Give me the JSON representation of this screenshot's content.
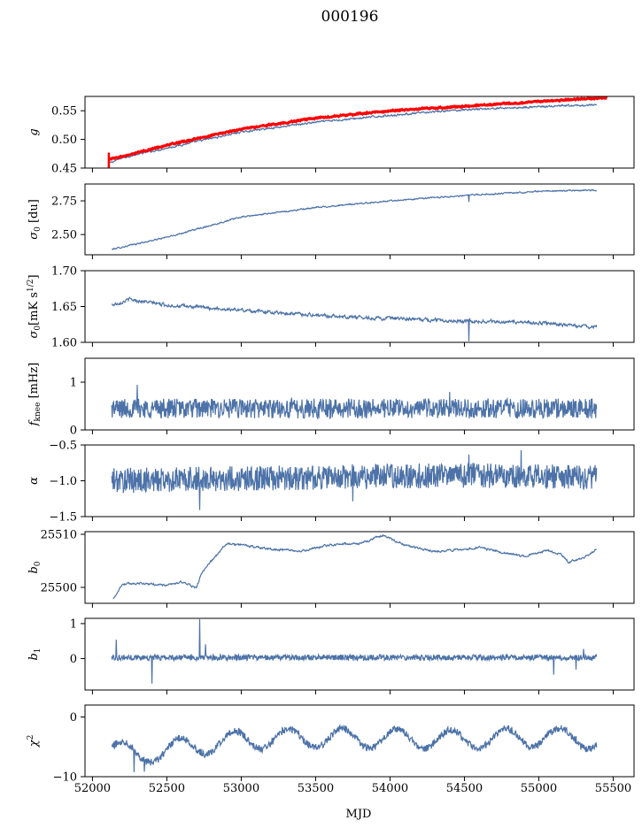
{
  "figure": {
    "title": "000196",
    "xlabel": "MJD",
    "x_ticks": [
      52000,
      52500,
      53000,
      53500,
      54000,
      54500,
      55000,
      55500
    ],
    "x_tick_labels": [
      "52000",
      "52500",
      "53000",
      "53500",
      "54000",
      "54500",
      "55000",
      "55500"
    ]
  },
  "colors": {
    "series": "#4c72a8",
    "fit": "#ff0000",
    "axes": "#000000"
  },
  "chart_data": [
    {
      "type": "line",
      "ylabel": "g",
      "xlim": [
        51950,
        55640
      ],
      "ylim": [
        0.45,
        0.575
      ],
      "y_ticks": [
        0.45,
        0.5,
        0.55
      ],
      "y_tick_labels": [
        "0.45",
        "0.50",
        "0.55"
      ],
      "series": [
        {
          "role": "line",
          "kind": "trend",
          "x_start": 52110,
          "x_end": 55390,
          "noise": 0.0012,
          "knots": [
            [
              52110,
              0.458
            ],
            [
              52200,
              0.468
            ],
            [
              52500,
              0.485
            ],
            [
              53000,
              0.513
            ],
            [
              53500,
              0.53
            ],
            [
              54000,
              0.542
            ],
            [
              54500,
              0.552
            ],
            [
              55000,
              0.557
            ],
            [
              55390,
              0.56
            ]
          ]
        },
        {
          "role": "fit",
          "kind": "trend",
          "x_start": 52110,
          "x_end": 55460,
          "noise": 0.0009,
          "knots": [
            [
              52110,
              0.466
            ],
            [
              52200,
              0.47
            ],
            [
              52500,
              0.49
            ],
            [
              53000,
              0.518
            ],
            [
              53500,
              0.537
            ],
            [
              54000,
              0.55
            ],
            [
              54500,
              0.558
            ],
            [
              55000,
              0.566
            ],
            [
              55460,
              0.573
            ]
          ]
        }
      ]
    },
    {
      "type": "line",
      "ylabel": "σ0 [du]",
      "xlim": [
        51950,
        55640
      ],
      "ylim": [
        2.35,
        2.875
      ],
      "y_ticks": [
        2.5,
        2.75
      ],
      "y_tick_labels": [
        "2.50",
        "2.75"
      ],
      "series": [
        {
          "role": "line",
          "kind": "trend",
          "x_start": 52130,
          "x_end": 55390,
          "noise": 0.004,
          "knots": [
            [
              52130,
              2.39
            ],
            [
              52500,
              2.48
            ],
            [
              53000,
              2.63
            ],
            [
              53500,
              2.7
            ],
            [
              54000,
              2.75
            ],
            [
              54500,
              2.79
            ],
            [
              55000,
              2.82
            ],
            [
              55390,
              2.83
            ]
          ],
          "spikes": [
            [
              54530,
              -0.05
            ]
          ]
        }
      ]
    },
    {
      "type": "line",
      "ylabel": "σ0[mK s^1/2]",
      "xlim": [
        51950,
        55640
      ],
      "ylim": [
        1.6,
        1.7
      ],
      "y_ticks": [
        1.6,
        1.65,
        1.7
      ],
      "y_tick_labels": [
        "1.60",
        "1.65",
        "1.70"
      ],
      "series": [
        {
          "role": "line",
          "kind": "trend",
          "x_start": 52130,
          "x_end": 55390,
          "noise": 0.0018,
          "knots": [
            [
              52130,
              1.652
            ],
            [
              52250,
              1.66
            ],
            [
              52500,
              1.652
            ],
            [
              53000,
              1.645
            ],
            [
              53500,
              1.638
            ],
            [
              54000,
              1.633
            ],
            [
              54500,
              1.63
            ],
            [
              55000,
              1.627
            ],
            [
              55390,
              1.621
            ]
          ],
          "spikes": [
            [
              54530,
              -0.03
            ]
          ]
        }
      ]
    },
    {
      "type": "line",
      "ylabel": "f_knee [mHz]",
      "xlim": [
        51950,
        55640
      ],
      "ylim": [
        0,
        1.5
      ],
      "y_ticks": [
        0,
        1
      ],
      "y_tick_labels": [
        "0",
        "1"
      ],
      "series": [
        {
          "role": "line",
          "kind": "noise",
          "x_start": 52130,
          "x_end": 55390,
          "noise": 0.13,
          "knots": [
            [
              52130,
              0.45
            ],
            [
              55390,
              0.45
            ]
          ],
          "spikes": [
            [
              52300,
              0.42
            ],
            [
              54400,
              0.3
            ],
            [
              55280,
              0.3
            ]
          ]
        }
      ]
    },
    {
      "type": "line",
      "ylabel": "α",
      "xlim": [
        51950,
        55640
      ],
      "ylim": [
        -1.5,
        -0.5
      ],
      "y_ticks": [
        -1.5,
        -1.0,
        -0.5
      ],
      "y_tick_labels": [
        "−1.5",
        "−1.0",
        "−0.5"
      ],
      "series": [
        {
          "role": "line",
          "kind": "noise",
          "x_start": 52130,
          "x_end": 55390,
          "noise": 0.11,
          "knots": [
            [
              52130,
              -1.0
            ],
            [
              53000,
              -0.97
            ],
            [
              54500,
              -0.92
            ],
            [
              55390,
              -0.95
            ]
          ],
          "spikes": [
            [
              54530,
              0.45
            ],
            [
              54880,
              0.45
            ],
            [
              52720,
              -0.3
            ],
            [
              53750,
              -0.32
            ]
          ]
        }
      ]
    },
    {
      "type": "line",
      "ylabel": "b0",
      "xlim": [
        51950,
        55640
      ],
      "ylim": [
        25497,
        25510.5
      ],
      "y_ticks": [
        25500,
        25510
      ],
      "y_tick_labels": [
        "25500",
        "25510"
      ],
      "series": [
        {
          "role": "line",
          "kind": "trend",
          "x_start": 52140,
          "x_end": 55390,
          "noise": 0.15,
          "knots": [
            [
              52140,
              25497.8
            ],
            [
              52200,
              25500.6
            ],
            [
              52300,
              25500.8
            ],
            [
              52500,
              25500.4
            ],
            [
              52600,
              25501.0
            ],
            [
              52700,
              25499.9
            ],
            [
              52730,
              25502.5
            ],
            [
              52800,
              25505.0
            ],
            [
              52900,
              25508.2
            ],
            [
              53000,
              25508.0
            ],
            [
              53200,
              25507.2
            ],
            [
              53400,
              25506.8
            ],
            [
              53600,
              25508.0
            ],
            [
              53800,
              25508.3
            ],
            [
              53950,
              25509.8
            ],
            [
              54100,
              25508.0
            ],
            [
              54300,
              25506.7
            ],
            [
              54600,
              25507.5
            ],
            [
              54900,
              25505.8
            ],
            [
              55050,
              25507.0
            ],
            [
              55150,
              25506.2
            ],
            [
              55200,
              25504.8
            ],
            [
              55300,
              25505.5
            ],
            [
              55390,
              25507.3
            ]
          ]
        }
      ]
    },
    {
      "type": "line",
      "ylabel": "b1",
      "xlim": [
        51950,
        55640
      ],
      "ylim": [
        -0.9,
        1.15
      ],
      "y_ticks": [
        0,
        1
      ],
      "y_tick_labels": [
        "0",
        "1"
      ],
      "series": [
        {
          "role": "line",
          "kind": "noise",
          "x_start": 52130,
          "x_end": 55390,
          "noise": 0.05,
          "knots": [
            [
              52130,
              0.03
            ],
            [
              55390,
              0.03
            ]
          ],
          "spikes": [
            [
              52160,
              0.55
            ],
            [
              52400,
              -0.7
            ],
            [
              52720,
              1.05
            ],
            [
              52760,
              0.3
            ],
            [
              55100,
              -0.5
            ],
            [
              55250,
              -0.3
            ],
            [
              55300,
              0.3
            ]
          ]
        }
      ]
    },
    {
      "type": "line",
      "ylabel": "χ²",
      "xlim": [
        51950,
        55640
      ],
      "ylim": [
        -10,
        2
      ],
      "y_ticks": [
        -10,
        0
      ],
      "y_tick_labels": [
        "−10",
        "0"
      ],
      "series": [
        {
          "role": "line",
          "kind": "wave",
          "x_start": 52130,
          "x_end": 55390,
          "noise": 0.6,
          "knots": [
            [
              52130,
              -5
            ],
            [
              52300,
              -6.5
            ],
            [
              52500,
              -5.5
            ],
            [
              53000,
              -3.8
            ],
            [
              53500,
              -3.5
            ],
            [
              54000,
              -3.6
            ],
            [
              54500,
              -3.8
            ],
            [
              55000,
              -3.3
            ],
            [
              55390,
              -3.8
            ]
          ],
          "wave_amp": 1.6,
          "wave_period": 365,
          "spikes": [
            [
              52280,
              -3.5
            ],
            [
              52350,
              -2.5
            ],
            [
              55250,
              1.5
            ]
          ]
        }
      ]
    }
  ]
}
